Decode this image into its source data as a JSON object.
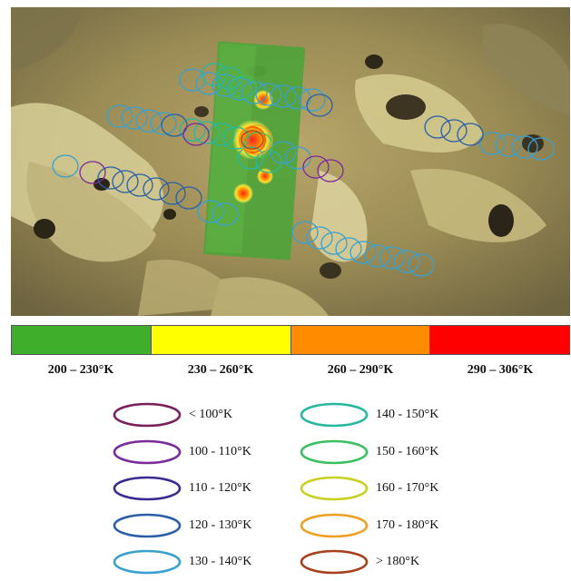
{
  "temperature_scale": [
    {
      "label": "200 – 230°K",
      "color": "#3fae2a"
    },
    {
      "label": "230 – 260°K",
      "color": "#ffff00"
    },
    {
      "label": "260 – 290°K",
      "color": "#ff8c00"
    },
    {
      "label": "290 – 306°K",
      "color": "#ff0000"
    }
  ],
  "legend_left": [
    {
      "label": "< 100°K",
      "color": "#7a1f5c"
    },
    {
      "label": "100 - 110°K",
      "color": "#7b2a9a"
    },
    {
      "label": "110 - 120°K",
      "color": "#3b2a90"
    },
    {
      "label": "120 - 130°K",
      "color": "#2a5fa8"
    },
    {
      "label": "130 - 140°K",
      "color": "#3aa0d0"
    }
  ],
  "legend_right": [
    {
      "label": "140 - 150°K",
      "color": "#28b8a0"
    },
    {
      "label": "150 - 160°K",
      "color": "#3ac060"
    },
    {
      "label": "160 - 170°K",
      "color": "#c8d020"
    },
    {
      "label": "170 - 180°K",
      "color": "#f0a020"
    },
    {
      "label": "> 180°K",
      "color": "#a8401c"
    }
  ]
}
